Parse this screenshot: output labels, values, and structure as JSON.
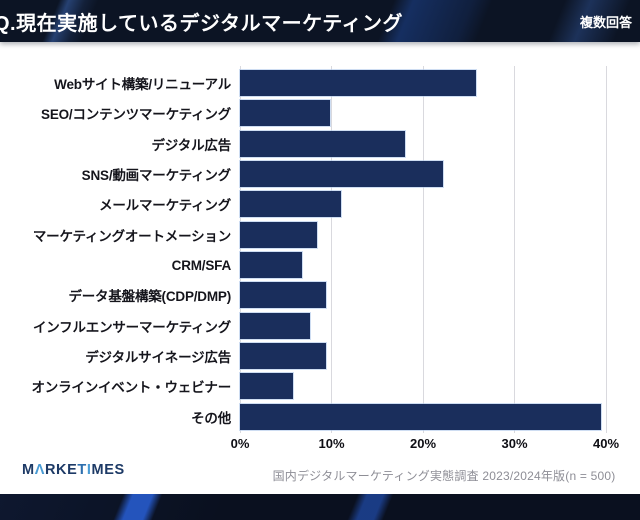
{
  "header": {
    "title": "Q.現在実施しているデジタルマーケティング",
    "badge": "複数回答"
  },
  "chart_data": {
    "type": "bar",
    "orientation": "horizontal",
    "title": "Q.現在実施しているデジタルマーケティング",
    "categories": [
      "Webサイト構築/リニューアル",
      "SEO/コンテンツマーケティング",
      "デジタル広告",
      "SNS/動画マーケティング",
      "メールマーケティング",
      "マーケティングオートメーション",
      "CRM/SFA",
      "データ基盤構築(CDP/DMP)",
      "インフルエンサーマーケティング",
      "デジタルサイネージ広告",
      "オンラインイベント・ウェビナー",
      "その他"
    ],
    "values": [
      25.8,
      9.8,
      18.0,
      22.2,
      11.0,
      8.4,
      6.8,
      9.4,
      7.6,
      9.4,
      5.8,
      39.4
    ],
    "x_ticks": [
      {
        "label": "0%",
        "value": 0
      },
      {
        "label": "10%",
        "value": 10
      },
      {
        "label": "20%",
        "value": 20
      },
      {
        "label": "30%",
        "value": 30
      },
      {
        "label": "40%",
        "value": 40
      }
    ],
    "xlim": [
      0,
      40
    ],
    "grid": true,
    "legend": false,
    "bar_color": "#1a2e5c",
    "gridline_color": "#d9d9de"
  },
  "footer": {
    "logo_letters": [
      {
        "ch": "M",
        "color": "#1d3a66"
      },
      {
        "ch": "Λ",
        "color": "#4a9cd5"
      },
      {
        "ch": "R",
        "color": "#1d3a66"
      },
      {
        "ch": "K",
        "color": "#1d3a66"
      },
      {
        "ch": "E",
        "color": "#1d3a66"
      },
      {
        "ch": "T",
        "color": "#2e6fae"
      },
      {
        "ch": "I",
        "color": "#4a9cd5"
      },
      {
        "ch": "M",
        "color": "#1d3a66"
      },
      {
        "ch": "E",
        "color": "#1d3a66"
      },
      {
        "ch": "S",
        "color": "#1d3a66"
      }
    ],
    "caption": "国内デジタルマーケティング実態調査 2023/2024年版(n = 500)"
  },
  "colors": {
    "header_bg": "#0c1424",
    "accent_streak": "#285fd7",
    "bar": "#1a2e5c",
    "label_text": "#15151c",
    "tick_text": "#0e0e14",
    "caption_text": "#8e8e96"
  }
}
